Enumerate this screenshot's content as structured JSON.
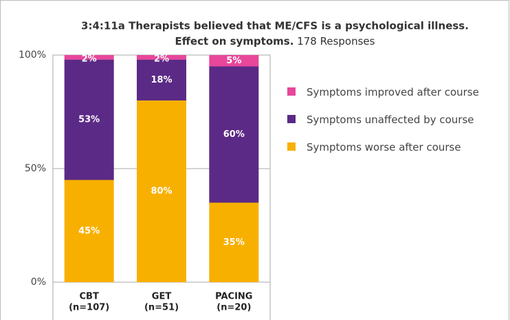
{
  "chart_data": {
    "type": "stacked_bar",
    "title": [
      "3:4:11a  Therapists believed that ME/CFS is a psychological illness.",
      "Effect on symptoms."
    ],
    "subtitle": "178 Responses",
    "categories": [
      [
        "CBT",
        "(n=107)"
      ],
      [
        "GET",
        "(n=51)"
      ],
      [
        "PACING",
        "(n=20)"
      ]
    ],
    "series": [
      {
        "name": "Symptoms improved after course",
        "color": "#e8479a",
        "values": [
          2,
          2,
          5
        ],
        "value_labels": [
          "2%",
          "2%",
          "5%"
        ]
      },
      {
        "name": "Symptoms unaffected by course",
        "color": "#5b2a86",
        "values": [
          53,
          18,
          60
        ],
        "value_labels": [
          "53%",
          "18%",
          "60%"
        ]
      },
      {
        "name": "Symptoms worse after course",
        "color": "#f8b000",
        "values": [
          45,
          80,
          35
        ],
        "value_labels": [
          "45%",
          "80%",
          "35%"
        ]
      }
    ],
    "ylim": [
      0,
      100
    ],
    "yticks": [
      {
        "value": 0,
        "label": "0%"
      },
      {
        "value": 50,
        "label": "50%"
      },
      {
        "value": 100,
        "label": "100%"
      }
    ],
    "grid": true,
    "legend": "right"
  }
}
